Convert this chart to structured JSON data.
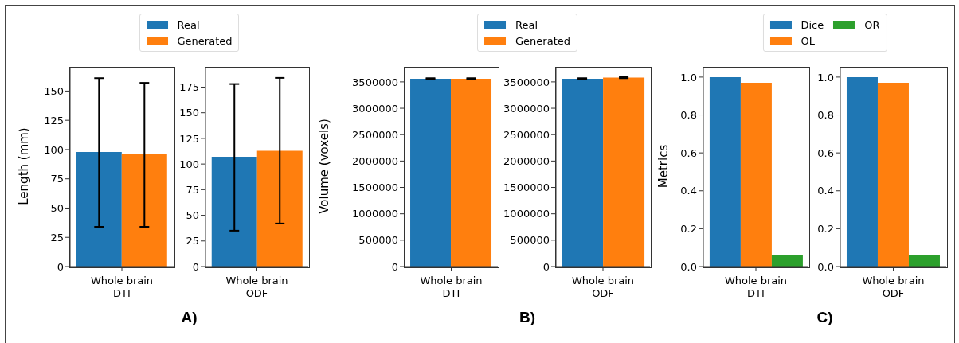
{
  "chart_data": [
    {
      "type": "bar",
      "ylabel": "Length (mm)",
      "categories": [
        "Whole brain\nDTI"
      ],
      "series": [
        {
          "name": "Real",
          "color": "#1f77b4",
          "values": [
            98
          ],
          "errors": [
            [
              34,
              161
            ]
          ]
        },
        {
          "name": "Generated",
          "color": "#ff7f0e",
          "values": [
            96
          ],
          "errors": [
            [
              34,
              157
            ]
          ]
        }
      ],
      "ylim": [
        0,
        170
      ],
      "yticks": [
        0,
        25,
        50,
        75,
        100,
        125,
        150
      ],
      "legend": "top",
      "annotations": [
        "A)"
      ]
    },
    {
      "type": "bar",
      "categories": [
        "Whole brain\nODF"
      ],
      "series": [
        {
          "color": "#1f77b4",
          "values": [
            107
          ],
          "errors": [
            [
              35,
              178
            ]
          ]
        },
        {
          "color": "#ff7f0e",
          "values": [
            113
          ],
          "errors": [
            [
              42,
              184
            ]
          ]
        }
      ],
      "ylim": [
        0,
        194
      ],
      "yticks": [
        0,
        25,
        50,
        75,
        100,
        125,
        150,
        175
      ]
    },
    {
      "type": "bar",
      "ylabel": "Volume (voxels)",
      "categories": [
        "Whole brain\nDTI"
      ],
      "series": [
        {
          "name": "Real",
          "color": "#1f77b4",
          "values": [
            3560000
          ],
          "errors": [
            [
              3550000,
              3570000
            ]
          ]
        },
        {
          "name": "Generated",
          "color": "#ff7f0e",
          "values": [
            3560000
          ],
          "errors": [
            [
              3550000,
              3570000
            ]
          ]
        }
      ],
      "ylim": [
        0,
        3770000
      ],
      "yticks": [
        0,
        500000,
        1000000,
        1500000,
        2000000,
        2500000,
        3000000,
        3500000
      ],
      "legend": "top",
      "annotations": [
        "B)"
      ]
    },
    {
      "type": "bar",
      "categories": [
        "Whole brain\nODF"
      ],
      "series": [
        {
          "color": "#1f77b4",
          "values": [
            3560000
          ],
          "errors": [
            [
              3550000,
              3570000
            ]
          ]
        },
        {
          "color": "#ff7f0e",
          "values": [
            3580000
          ],
          "errors": [
            [
              3570000,
              3590000
            ]
          ]
        }
      ],
      "ylim": [
        0,
        3770000
      ],
      "yticks": [
        0,
        500000,
        1000000,
        1500000,
        2000000,
        2500000,
        3000000,
        3500000
      ]
    },
    {
      "type": "bar",
      "ylabel": "Metrics",
      "categories": [
        "Whole brain\nDTI"
      ],
      "series": [
        {
          "name": "Dice",
          "color": "#1f77b4",
          "values": [
            1.0
          ]
        },
        {
          "name": "OL",
          "color": "#ff7f0e",
          "values": [
            0.97
          ]
        },
        {
          "name": "OR",
          "color": "#2ca02c",
          "values": [
            0.06
          ]
        }
      ],
      "ylim": [
        0,
        1.05
      ],
      "yticks": [
        {
          "value": 0,
          "label": "0.0"
        },
        {
          "value": 0.2,
          "label": "0.2"
        },
        {
          "value": 0.4,
          "label": "0.4"
        },
        {
          "value": 0.6,
          "label": "0.6"
        },
        {
          "value": 0.8,
          "label": "0.8"
        },
        {
          "value": 1,
          "label": "1.0"
        }
      ],
      "legend": "top",
      "annotations": [
        "C)"
      ]
    },
    {
      "type": "bar",
      "categories": [
        "Whole brain\nODF"
      ],
      "series": [
        {
          "color": "#1f77b4",
          "values": [
            1.0
          ]
        },
        {
          "color": "#ff7f0e",
          "values": [
            0.97
          ]
        },
        {
          "color": "#2ca02c",
          "values": [
            0.06
          ]
        }
      ],
      "ylim": [
        0,
        1.05
      ],
      "yticks": [
        {
          "value": 0,
          "label": "0.0"
        },
        {
          "value": 0.2,
          "label": "0.2"
        },
        {
          "value": 0.4,
          "label": "0.4"
        },
        {
          "value": 0.6,
          "label": "0.6"
        },
        {
          "value": 0.8,
          "label": "0.8"
        },
        {
          "value": 1,
          "label": "1.0"
        }
      ]
    }
  ]
}
